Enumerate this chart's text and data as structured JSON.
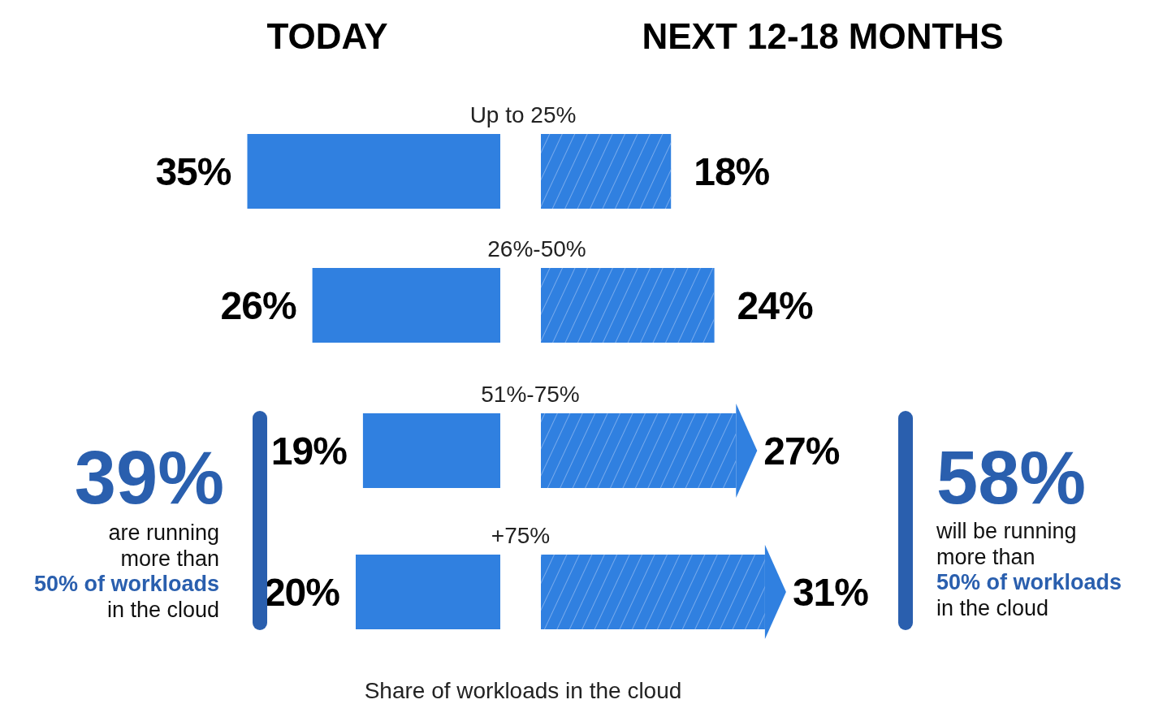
{
  "chart_data": [
    {
      "type": "bar",
      "orientation": "horizontal",
      "title": "TODAY",
      "categories": [
        "Up to 25%",
        "26%-50%",
        "51%-75%",
        "+75%"
      ],
      "series": [
        {
          "color": "#3080e0",
          "values": [
            35,
            26,
            19,
            20
          ],
          "value_labels": [
            "35%",
            "26%",
            "19%",
            "20%"
          ]
        }
      ],
      "xlabel": "Share of workloads in the cloud",
      "annotations": [
        "39%",
        "are running",
        "more than",
        "50% of workloads",
        "in the cloud"
      ]
    },
    {
      "type": "bar",
      "orientation": "horizontal",
      "title": "NEXT 12-18 MONTHS",
      "categories": [
        null,
        null,
        null,
        null
      ],
      "series": [
        {
          "color": "#3080e0",
          "values": [
            18,
            24,
            27,
            31
          ],
          "value_labels": [
            "18%",
            "24%",
            "27%",
            "31%"
          ]
        }
      ],
      "annotations": [
        "58%",
        "will be running",
        "more than",
        "50% of workloads",
        "in the cloud"
      ]
    }
  ]
}
